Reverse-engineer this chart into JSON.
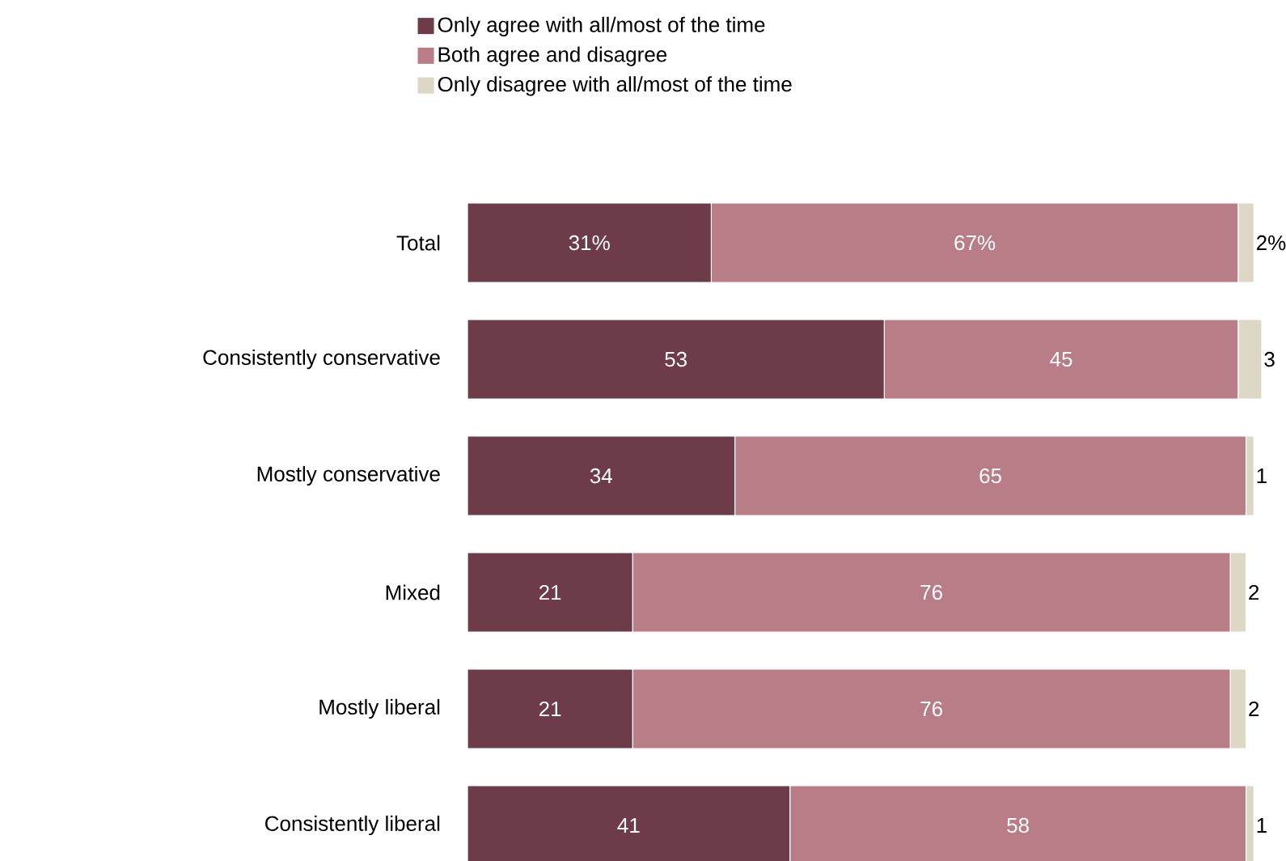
{
  "chart_data": {
    "type": "bar",
    "orientation": "horizontal",
    "stacked": true,
    "legend": "top",
    "categories": [
      "Total",
      "Consistently conservative",
      "Mostly conservative",
      "Mixed",
      "Mostly liberal",
      "Consistently liberal"
    ],
    "series": [
      {
        "name": "Only agree with all/most of the time",
        "color": "#6e3b48",
        "values": [
          31,
          53,
          34,
          21,
          21,
          41
        ],
        "value_labels": [
          "31%",
          "53",
          "34",
          "21",
          "21",
          "41"
        ]
      },
      {
        "name": "Both agree and disagree",
        "color": "#b97d87",
        "values": [
          67,
          45,
          65,
          76,
          76,
          58
        ],
        "value_labels": [
          "67%",
          "45",
          "65",
          "76",
          "76",
          "58"
        ]
      },
      {
        "name": "Only disagree with all/most of the time",
        "color": "#dcd8c5",
        "values": [
          2,
          3,
          1,
          2,
          2,
          1
        ],
        "value_labels": [
          "2%",
          "3",
          "1",
          "2",
          "2",
          "1"
        ]
      }
    ]
  }
}
